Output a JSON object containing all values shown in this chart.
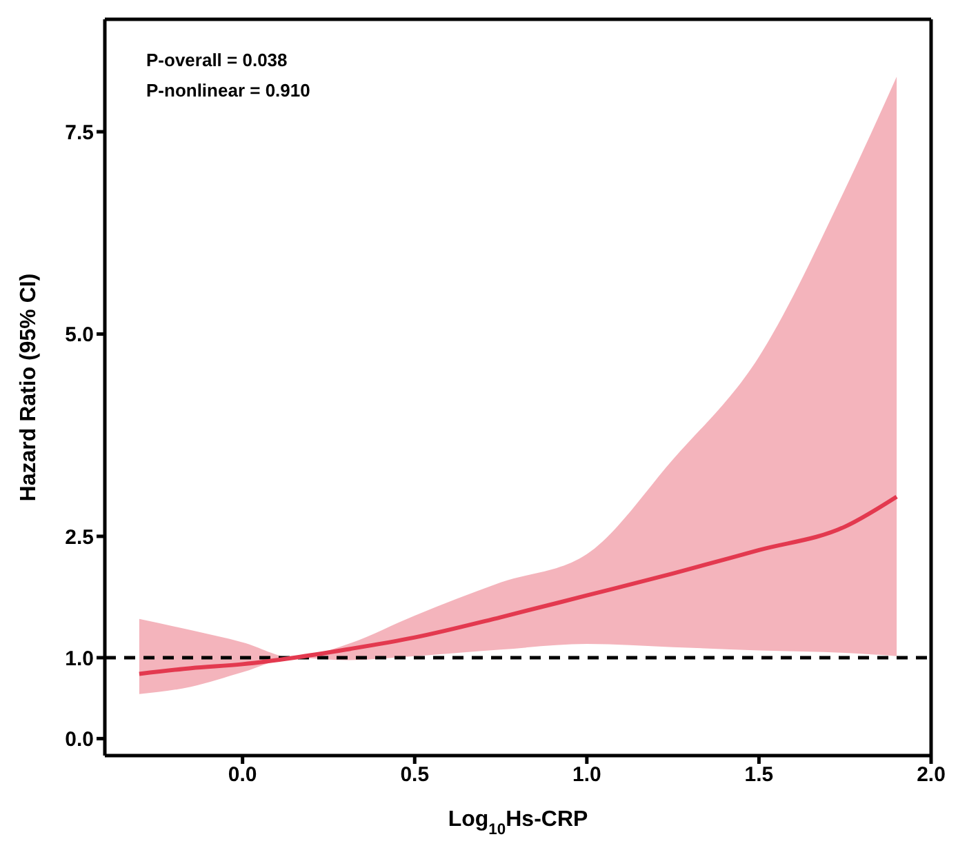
{
  "chart_data": {
    "type": "line",
    "xlabel": "Log$_{10}$Hs-CRP",
    "ylabel": "Hazard Ratio (95% CI)",
    "annotations": [
      "P-overall = 0.038",
      "P-nonlinear = 0.910"
    ],
    "x": [
      -0.3,
      -0.15,
      0,
      0.15,
      0.3,
      0.5,
      0.75,
      1.0,
      1.25,
      1.5,
      1.75,
      1.9
    ],
    "series": [
      {
        "color": "#e3394f",
        "values": [
          0.8,
          0.87,
          0.92,
          1.0,
          1.1,
          1.25,
          1.5,
          1.77,
          2.04,
          2.33,
          2.62,
          2.99
        ],
        "lower": [
          0.55,
          0.64,
          0.82,
          1.0,
          0.97,
          1.02,
          1.1,
          1.17,
          1.13,
          1.09,
          1.06,
          1.02
        ],
        "upper": [
          1.48,
          1.34,
          1.19,
          1.0,
          1.16,
          1.52,
          1.93,
          2.28,
          3.45,
          4.72,
          6.79,
          8.18
        ]
      }
    ],
    "xlim": [
      -0.4,
      2.0
    ],
    "xticks": [
      {
        "value": 0,
        "label": "0.0"
      },
      0.5,
      {
        "value": 1,
        "label": "1.0"
      },
      1.5,
      {
        "value": 2,
        "label": "2.0"
      }
    ],
    "ylim": [
      -0.21,
      8.89
    ],
    "yticks": [
      {
        "value": 0,
        "label": "0.0"
      },
      {
        "value": 1,
        "label": "1.0"
      },
      2.5,
      {
        "value": 5,
        "label": "5.0"
      },
      7.5
    ],
    "ref_lines": [
      {
        "axis": "y",
        "value": 1,
        "color": "#000000",
        "line_style": "dashed"
      }
    ],
    "marker": "none",
    "line_style": "solid"
  }
}
